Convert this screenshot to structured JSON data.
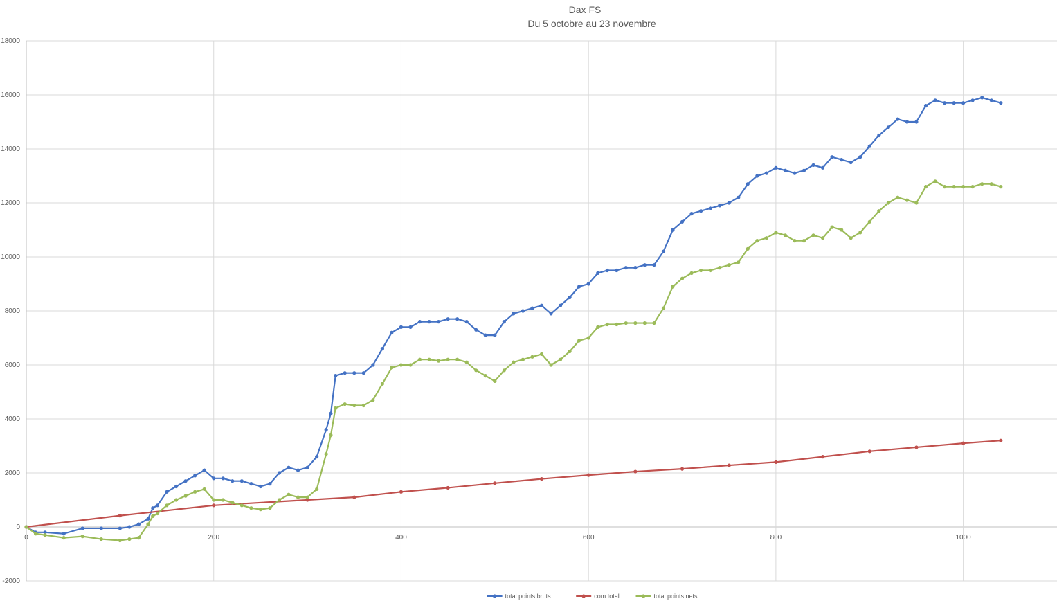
{
  "chart_data": {
    "type": "line",
    "title": "Dax FS",
    "subtitle": "Du 5 octobre au 23 novembre",
    "xlim": [
      0,
      1100
    ],
    "ylim": [
      -2000,
      18000
    ],
    "x_ticks": [
      0,
      200,
      400,
      600,
      800,
      1000
    ],
    "x_tick_labels": [
      "0",
      "200",
      "400",
      "600",
      "800",
      "1000"
    ],
    "y_ticks": [
      -2000,
      0,
      2000,
      4000,
      6000,
      8000,
      10000,
      12000,
      14000,
      16000,
      18000
    ],
    "y_tick_labels": [
      "-2000",
      "0",
      "2000",
      "4000",
      "6000",
      "8000",
      "10000",
      "12000",
      "14000",
      "16000",
      "18000"
    ],
    "grid": true,
    "legend_position": "bottom",
    "series": [
      {
        "name": "total points bruts",
        "color": "#4472C4",
        "x": [
          0,
          10,
          20,
          40,
          60,
          80,
          100,
          110,
          120,
          130,
          135,
          140,
          150,
          160,
          170,
          180,
          190,
          200,
          210,
          220,
          230,
          240,
          250,
          260,
          270,
          280,
          290,
          300,
          310,
          320,
          325,
          330,
          340,
          350,
          360,
          370,
          380,
          390,
          400,
          410,
          420,
          430,
          440,
          450,
          460,
          470,
          480,
          490,
          500,
          510,
          520,
          530,
          540,
          550,
          560,
          570,
          580,
          590,
          600,
          610,
          620,
          630,
          640,
          650,
          660,
          670,
          680,
          690,
          700,
          710,
          720,
          730,
          740,
          750,
          760,
          770,
          780,
          790,
          800,
          810,
          820,
          830,
          840,
          850,
          860,
          870,
          880,
          890,
          900,
          910,
          920,
          930,
          940,
          950,
          960,
          970,
          980,
          990,
          1000,
          1010,
          1020,
          1030,
          1040
        ],
        "values": [
          0,
          -200,
          -200,
          -250,
          -50,
          -50,
          -50,
          0,
          100,
          300,
          700,
          800,
          1300,
          1500,
          1700,
          1900,
          2100,
          1800,
          1800,
          1700,
          1700,
          1600,
          1500,
          1600,
          2000,
          2200,
          2100,
          2200,
          2600,
          3600,
          4200,
          5600,
          5700,
          5700,
          5700,
          6000,
          6600,
          7200,
          7400,
          7400,
          7600,
          7600,
          7600,
          7700,
          7700,
          7600,
          7300,
          7100,
          7100,
          7600,
          7900,
          8000,
          8100,
          8200,
          7900,
          8200,
          8500,
          8900,
          9000,
          9400,
          9500,
          9500,
          9600,
          9600,
          9700,
          9700,
          10200,
          11000,
          11300,
          11600,
          11700,
          11800,
          11900,
          12000,
          12200,
          12700,
          13000,
          13100,
          13300,
          13200,
          13100,
          13200,
          13400,
          13300,
          13700,
          13600,
          13500,
          13700,
          14100,
          14500,
          14800,
          15100,
          15000,
          15000,
          15600,
          15800,
          15700,
          15700,
          15700,
          15800,
          15900,
          15800,
          15700
        ]
      },
      {
        "name": "com total",
        "color": "#C0504D",
        "x": [
          0,
          100,
          200,
          300,
          350,
          400,
          450,
          500,
          550,
          600,
          650,
          700,
          750,
          800,
          850,
          900,
          950,
          1000,
          1040
        ],
        "values": [
          0,
          420,
          800,
          1000,
          1100,
          1300,
          1450,
          1620,
          1780,
          1920,
          2050,
          2150,
          2280,
          2400,
          2600,
          2800,
          2950,
          3100,
          3200
        ]
      },
      {
        "name": "total points nets",
        "color": "#9BBB59",
        "x": [
          0,
          10,
          20,
          40,
          60,
          80,
          100,
          110,
          120,
          130,
          135,
          140,
          150,
          160,
          170,
          180,
          190,
          200,
          210,
          220,
          230,
          240,
          250,
          260,
          270,
          280,
          290,
          300,
          310,
          320,
          325,
          330,
          340,
          350,
          360,
          370,
          380,
          390,
          400,
          410,
          420,
          430,
          440,
          450,
          460,
          470,
          480,
          490,
          500,
          510,
          520,
          530,
          540,
          550,
          560,
          570,
          580,
          590,
          600,
          610,
          620,
          630,
          640,
          650,
          660,
          670,
          680,
          690,
          700,
          710,
          720,
          730,
          740,
          750,
          760,
          770,
          780,
          790,
          800,
          810,
          820,
          830,
          840,
          850,
          860,
          870,
          880,
          890,
          900,
          910,
          920,
          930,
          940,
          950,
          960,
          970,
          980,
          990,
          1000,
          1010,
          1020,
          1030,
          1040
        ],
        "values": [
          0,
          -250,
          -300,
          -400,
          -350,
          -450,
          -500,
          -450,
          -400,
          100,
          400,
          500,
          800,
          1000,
          1150,
          1300,
          1400,
          1000,
          1000,
          900,
          800,
          700,
          650,
          700,
          1000,
          1200,
          1100,
          1100,
          1400,
          2700,
          3400,
          4400,
          4550,
          4500,
          4500,
          4700,
          5300,
          5900,
          6000,
          6000,
          6200,
          6200,
          6150,
          6200,
          6200,
          6100,
          5800,
          5600,
          5400,
          5800,
          6100,
          6200,
          6300,
          6400,
          6000,
          6200,
          6500,
          6900,
          7000,
          7400,
          7500,
          7500,
          7550,
          7550,
          7550,
          7550,
          8100,
          8900,
          9200,
          9400,
          9500,
          9500,
          9600,
          9700,
          9800,
          10300,
          10600,
          10700,
          10900,
          10800,
          10600,
          10600,
          10800,
          10700,
          11100,
          11000,
          10700,
          10900,
          11300,
          11700,
          12000,
          12200,
          12100,
          12000,
          12600,
          12800,
          12600,
          12600,
          12600,
          12600,
          12700,
          12700,
          12600
        ]
      }
    ]
  }
}
